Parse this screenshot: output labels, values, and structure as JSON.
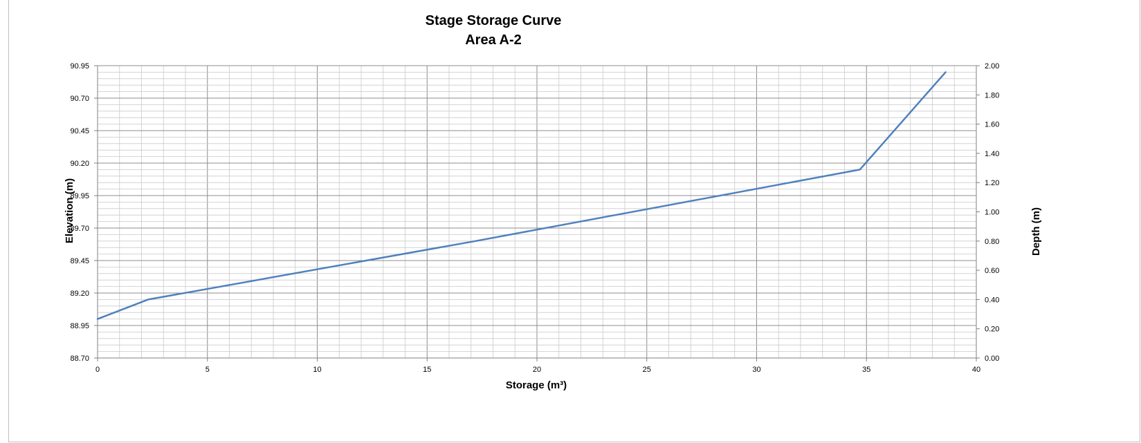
{
  "chart_data": {
    "type": "line",
    "title": "Stage Storage Curve",
    "subtitle": "Area A-2",
    "xlabel": "Storage (m³)",
    "ylabel": "Elevation (m)",
    "y2label": "Depth (m)",
    "xlim": [
      0,
      40
    ],
    "ylim": [
      88.7,
      90.95
    ],
    "y2lim": [
      0.0,
      2.0
    ],
    "grid": true,
    "x_ticks": [
      "0",
      "5",
      "10",
      "15",
      "20",
      "25",
      "30",
      "35",
      "40"
    ],
    "y_ticks": [
      "88.70",
      "88.95",
      "89.20",
      "89.45",
      "89.70",
      "89.95",
      "90.20",
      "90.45",
      "90.70",
      "90.95"
    ],
    "y2_ticks": [
      "0.00",
      "0.20",
      "0.40",
      "0.60",
      "0.80",
      "1.00",
      "1.20",
      "1.40",
      "1.60",
      "1.80",
      "2.00"
    ],
    "series": [
      {
        "color": "#4f81bd",
        "x": [
          0,
          2.3,
          17.2,
          34.7,
          38.6
        ],
        "y": [
          89.0,
          89.15,
          89.6,
          90.15,
          90.9
        ]
      }
    ]
  }
}
